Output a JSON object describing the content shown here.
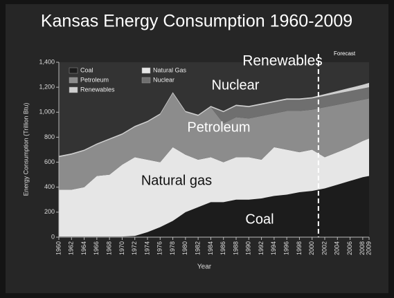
{
  "chart_data": {
    "type": "stacked_area",
    "title": "Kansas Energy Consumption 1960-2009",
    "x_label": "Year",
    "y_label": "Energy Consumption (Trillion Btu)",
    "x": [
      1960,
      1962,
      1964,
      1966,
      1968,
      1970,
      1972,
      1974,
      1976,
      1978,
      1980,
      1982,
      1984,
      1986,
      1988,
      1990,
      1992,
      1994,
      1996,
      1998,
      2000,
      2002,
      2004,
      2006,
      2008,
      2009
    ],
    "xlim": [
      1960,
      2009
    ],
    "xticks": [
      1960,
      1962,
      1964,
      1966,
      1968,
      1970,
      1972,
      1974,
      1976,
      1978,
      1980,
      1982,
      1984,
      1986,
      1988,
      1990,
      1992,
      1994,
      1996,
      1998,
      2000,
      2002,
      2004,
      2006,
      2008,
      2009
    ],
    "ylim": [
      0,
      1400
    ],
    "yticks": [
      0,
      200,
      400,
      600,
      800,
      {
        "value": 1000,
        "label": "1,000"
      },
      {
        "value": 1200,
        "label": "1,200"
      },
      {
        "value": 1400,
        "label": "1,400"
      }
    ],
    "legend": "top-left",
    "series": [
      {
        "name": "Coal",
        "color": "#1c1c1c",
        "values": [
          5,
          5,
          5,
          5,
          5,
          5,
          10,
          40,
          80,
          130,
          200,
          240,
          280,
          280,
          300,
          300,
          310,
          330,
          340,
          360,
          370,
          390,
          420,
          450,
          480,
          490
        ]
      },
      {
        "name": "Natural Gas",
        "color": "#e6e6e6",
        "values": [
          375,
          375,
          395,
          485,
          495,
          575,
          630,
          580,
          520,
          590,
          460,
          380,
          360,
          320,
          340,
          340,
          310,
          390,
          360,
          320,
          330,
          250,
          260,
          270,
          290,
          300
        ]
      },
      {
        "name": "Petroleum",
        "color": "#8c8c8c",
        "values": [
          260,
          280,
          290,
          250,
          280,
          240,
          240,
          300,
          380,
          430,
          340,
          350,
          400,
          310,
          320,
          310,
          350,
          270,
          310,
          330,
          320,
          400,
          380,
          360,
          330,
          320
        ]
      },
      {
        "name": "Nuclear",
        "color": "#6f6f6f",
        "values": [
          0,
          0,
          0,
          0,
          0,
          0,
          0,
          0,
          0,
          0,
          0,
          0,
          0,
          90,
          90,
          90,
          90,
          90,
          90,
          90,
          90,
          90,
          90,
          90,
          90,
          90
        ]
      },
      {
        "name": "Renewables",
        "color": "#cfcfcf",
        "values": [
          10,
          10,
          10,
          10,
          10,
          10,
          10,
          10,
          10,
          10,
          10,
          10,
          10,
          10,
          10,
          10,
          10,
          10,
          10,
          10,
          10,
          15,
          20,
          25,
          30,
          35
        ]
      }
    ],
    "forecast_start": 2001,
    "forecast_label": "Forecast",
    "annotations": [
      "Renewables",
      "Nuclear",
      "Petroleum",
      "Natural gas",
      "Coal"
    ]
  }
}
